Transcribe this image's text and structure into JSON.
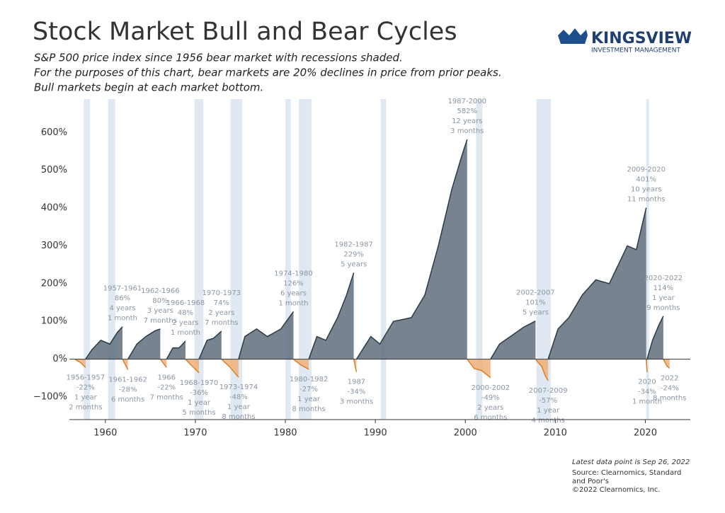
{
  "logo": {
    "name": "KINGSVIEW",
    "tagline": "INVESTMENT MANAGEMENT"
  },
  "chart_data": {
    "type": "area",
    "title": "Stock Market Bull and Bear Cycles",
    "subtitle": [
      "S&P 500 price index since 1956 bear market with recessions shaded.",
      "For the purposes of this chart, bear markets are 20% declines in price from prior peaks.",
      "Bull markets begin at each market bottom."
    ],
    "note": "Latest data point is Sep 26, 2022",
    "source": [
      "Source: Clearnomics, Standard",
      "and Poor's",
      "©2022 Clearnomics, Inc."
    ],
    "xlim": [
      1956,
      2025
    ],
    "xticks": [
      1960,
      1970,
      1980,
      1990,
      2000,
      2010,
      2020
    ],
    "ylim": [
      -160,
      670
    ],
    "yticks": [
      {
        "value": -100,
        "label": "−100%"
      },
      {
        "value": 0,
        "label": "0%"
      },
      {
        "value": 100,
        "label": "100%"
      },
      {
        "value": 200,
        "label": "200%"
      },
      {
        "value": 300,
        "label": "300%"
      },
      {
        "value": 400,
        "label": "400%"
      },
      {
        "value": 500,
        "label": "500%"
      },
      {
        "value": 600,
        "label": "600%"
      }
    ],
    "colors": {
      "bull": "#5f6f7d",
      "bull_line": "#2c3a47",
      "bear": "#eeb07a",
      "bear_line": "#d9822b",
      "recession": "#dbe4ef"
    },
    "recessions": [
      [
        1957.6,
        1958.3
      ],
      [
        1960.3,
        1961.1
      ],
      [
        1969.9,
        1970.9
      ],
      [
        1973.9,
        1975.2
      ],
      [
        1980.0,
        1980.6
      ],
      [
        1981.5,
        1982.9
      ],
      [
        1990.6,
        1991.2
      ],
      [
        2001.2,
        2001.9
      ],
      [
        2007.9,
        2009.5
      ],
      [
        2020.1,
        2020.4
      ]
    ],
    "cycles": [
      {
        "kind": "bear",
        "label": [
          "1956-1957",
          "-22%",
          "1 year",
          "2 months"
        ],
        "x": [
          1956.6,
          1957.3,
          1957.8
        ],
        "values": [
          0,
          -10,
          -22
        ]
      },
      {
        "kind": "bull",
        "label": [
          "1957-1961",
          "86%",
          "4 years",
          "1 month"
        ],
        "x": [
          1957.8,
          1958.5,
          1959.5,
          1960.5,
          1961.3,
          1961.9
        ],
        "values": [
          0,
          25,
          50,
          40,
          70,
          86
        ]
      },
      {
        "kind": "bear",
        "label": [
          "1961-1962",
          "-28%",
          "6 months"
        ],
        "x": [
          1961.9,
          1962.5
        ],
        "values": [
          0,
          -28
        ]
      },
      {
        "kind": "bull",
        "label": [
          "1962-1966",
          "80%",
          "3 years",
          "7 months"
        ],
        "x": [
          1962.5,
          1963.5,
          1964.5,
          1965.5,
          1966.1
        ],
        "values": [
          0,
          40,
          60,
          75,
          80
        ]
      },
      {
        "kind": "bear",
        "label": [
          "1966",
          "-22%",
          "7 months"
        ],
        "x": [
          1966.1,
          1966.8
        ],
        "values": [
          0,
          -22
        ]
      },
      {
        "kind": "bull",
        "label": [
          "1966-1968",
          "48%",
          "2 years",
          "1 month"
        ],
        "x": [
          1966.8,
          1967.5,
          1968.2,
          1968.9
        ],
        "values": [
          0,
          30,
          30,
          48
        ]
      },
      {
        "kind": "bear",
        "label": [
          "1968-1970",
          "-36%",
          "1 year",
          "5 months"
        ],
        "x": [
          1968.9,
          1969.5,
          1970.4
        ],
        "values": [
          0,
          -15,
          -36
        ]
      },
      {
        "kind": "bull",
        "label": [
          "1970-1973",
          "74%",
          "2 years",
          "7 months"
        ],
        "x": [
          1970.4,
          1971.3,
          1972.0,
          1972.9
        ],
        "values": [
          0,
          50,
          55,
          74
        ]
      },
      {
        "kind": "bear",
        "label": [
          "1973-1974",
          "-48%",
          "1 year",
          "8 months"
        ],
        "x": [
          1972.9,
          1973.8,
          1974.8
        ],
        "values": [
          0,
          -20,
          -48
        ]
      },
      {
        "kind": "bull",
        "label": [
          "1974-1980",
          "126%",
          "6 years",
          "1 month"
        ],
        "x": [
          1974.8,
          1975.5,
          1976.8,
          1978.0,
          1979.5,
          1980.9
        ],
        "values": [
          0,
          60,
          80,
          60,
          80,
          126
        ]
      },
      {
        "kind": "bear",
        "label": [
          "1980-1982",
          "-27%",
          "1 year",
          "8 months"
        ],
        "x": [
          1980.9,
          1981.7,
          1982.6
        ],
        "values": [
          0,
          -15,
          -27
        ]
      },
      {
        "kind": "bull",
        "label": [
          "1982-1987",
          "229%",
          "5 years"
        ],
        "x": [
          1982.6,
          1983.5,
          1984.5,
          1985.8,
          1986.8,
          1987.6
        ],
        "values": [
          0,
          60,
          50,
          110,
          170,
          229
        ]
      },
      {
        "kind": "bear",
        "label": [
          "1987",
          "-34%",
          "3 months"
        ],
        "x": [
          1987.6,
          1987.9
        ],
        "values": [
          0,
          -34
        ]
      },
      {
        "kind": "bull",
        "label": [
          "1987-2000",
          "582%",
          "12 years",
          "3 months"
        ],
        "x": [
          1987.9,
          1989.5,
          1990.5,
          1992.0,
          1994.0,
          1995.5,
          1997.0,
          1998.5,
          1999.5,
          2000.2
        ],
        "values": [
          0,
          60,
          40,
          100,
          110,
          170,
          300,
          450,
          530,
          582
        ]
      },
      {
        "kind": "bear",
        "label": [
          "2000-2002",
          "-49%",
          "2 years",
          "6 months"
        ],
        "x": [
          2000.2,
          2001.0,
          2001.8,
          2002.8
        ],
        "values": [
          0,
          -25,
          -30,
          -49
        ]
      },
      {
        "kind": "bull",
        "label": [
          "2002-2007",
          "101%",
          "5 years"
        ],
        "x": [
          2002.8,
          2003.8,
          2005.0,
          2006.5,
          2007.8
        ],
        "values": [
          0,
          40,
          60,
          85,
          101
        ]
      },
      {
        "kind": "bear",
        "label": [
          "2007-2009",
          "-57%",
          "1 year",
          "4 months"
        ],
        "x": [
          2007.8,
          2008.5,
          2008.9,
          2009.2
        ],
        "values": [
          0,
          -20,
          -45,
          -57
        ]
      },
      {
        "kind": "bull",
        "label": [
          "2009-2020",
          "401%",
          "10 years",
          "11 months"
        ],
        "x": [
          2009.2,
          2010.3,
          2011.5,
          2013.0,
          2014.5,
          2016.0,
          2018.0,
          2019.0,
          2020.1
        ],
        "values": [
          0,
          80,
          110,
          170,
          210,
          200,
          300,
          290,
          401
        ]
      },
      {
        "kind": "bear",
        "label": [
          "2020",
          "-34%",
          "1 month"
        ],
        "x": [
          2020.1,
          2020.2
        ],
        "values": [
          0,
          -34
        ]
      },
      {
        "kind": "bull",
        "label": [
          "2020-2022",
          "114%",
          "1 year",
          "9 months"
        ],
        "x": [
          2020.2,
          2020.8,
          2021.5,
          2022.0
        ],
        "values": [
          0,
          50,
          90,
          114
        ]
      },
      {
        "kind": "bear",
        "label": [
          "2022",
          "-24%",
          "8 months"
        ],
        "x": [
          2022.0,
          2022.4,
          2022.7
        ],
        "values": [
          0,
          -18,
          -24
        ]
      }
    ]
  }
}
